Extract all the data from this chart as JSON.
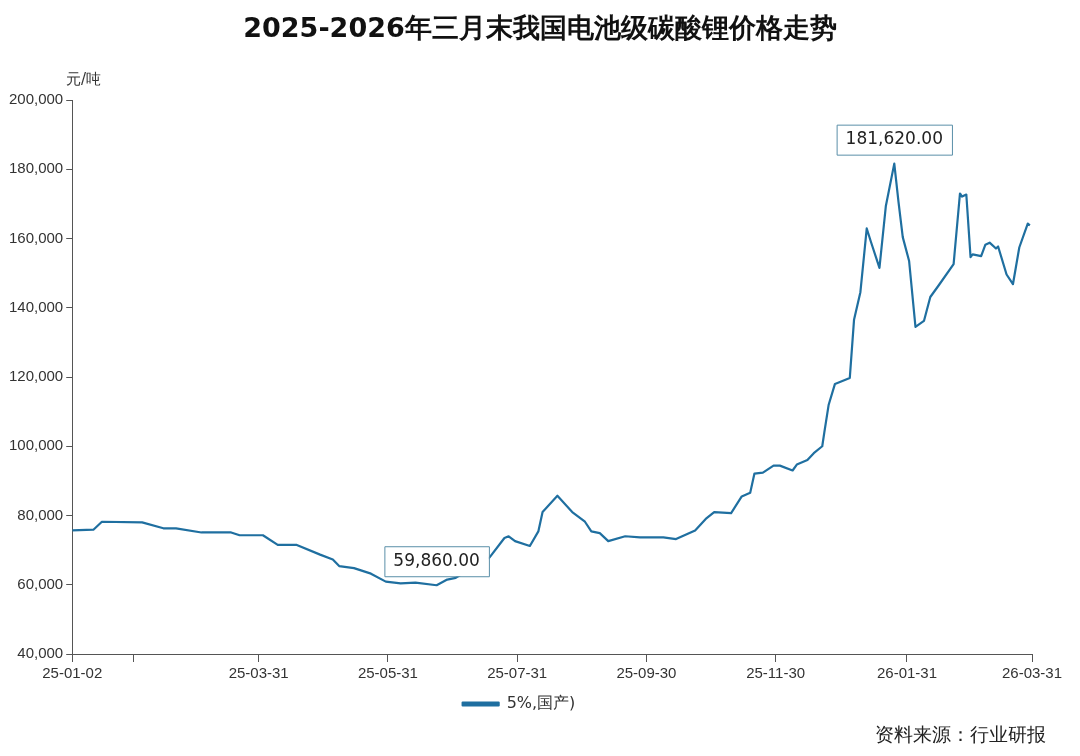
{
  "chart_data": {
    "type": "line",
    "title": "2025-2026年三月末我国电池级碳酸锂价格走势",
    "ylabel": "元/吨",
    "x": [
      "2025-01-02",
      "2025-01-12",
      "2025-01-16",
      "2025-02-04",
      "2025-02-14",
      "2025-02-20",
      "2025-03-04",
      "2025-03-18",
      "2025-03-22",
      "2025-04-02",
      "2025-04-09",
      "2025-04-18",
      "2025-04-29",
      "2025-05-05",
      "2025-05-08",
      "2025-05-15",
      "2025-05-23",
      "2025-05-30",
      "2025-06-06",
      "2025-06-13",
      "2025-06-23",
      "2025-06-28",
      "2025-07-02",
      "2025-07-18",
      "2025-07-25",
      "2025-07-27",
      "2025-07-30",
      "2025-08-06",
      "2025-08-10",
      "2025-08-12",
      "2025-08-19",
      "2025-08-26",
      "2025-09-01",
      "2025-09-04",
      "2025-09-08",
      "2025-09-12",
      "2025-09-20",
      "2025-09-27",
      "2025-10-08",
      "2025-10-14",
      "2025-10-23",
      "2025-10-28",
      "2025-11-01",
      "2025-11-09",
      "2025-11-14",
      "2025-11-18",
      "2025-11-20",
      "2025-11-24",
      "2025-11-29",
      "2025-12-02",
      "2025-12-08",
      "2025-12-10",
      "2025-12-15",
      "2025-12-18",
      "2025-12-22",
      "2025-12-23",
      "2025-12-25",
      "2025-12-28",
      "2026-01-04",
      "2026-01-06",
      "2026-01-09",
      "2026-01-12",
      "2026-01-14",
      "2026-01-18",
      "2026-01-21",
      "2026-01-25",
      "2026-01-27",
      "2026-01-29",
      "2026-02-01",
      "2026-02-04",
      "2026-02-08",
      "2026-02-11",
      "2026-02-15",
      "2026-02-22",
      "2026-02-25",
      "2026-02-26",
      "2026-02-28",
      "2026-03-02",
      "2026-03-03",
      "2026-03-07",
      "2026-03-09",
      "2026-03-11",
      "2026-03-14",
      "2026-03-15",
      "2026-03-19",
      "2026-03-22",
      "2026-03-25",
      "2026-03-29",
      "2026-03-30"
    ],
    "series": [
      {
        "name": "5%,国产)",
        "color": "#1f6fa0",
        "values": [
          75700,
          75900,
          78200,
          78000,
          76300,
          76300,
          75100,
          75100,
          74300,
          74300,
          71500,
          71500,
          68700,
          67300,
          65400,
          64800,
          63200,
          60900,
          60400,
          60600,
          59860,
          61500,
          62000,
          67900,
          73500,
          74000,
          72600,
          71200,
          75400,
          81000,
          85700,
          81000,
          78200,
          75400,
          74900,
          72600,
          74000,
          73700,
          73700,
          73200,
          75700,
          79000,
          81000,
          80700,
          85500,
          86600,
          92100,
          92400,
          94400,
          94400,
          93000,
          94700,
          96000,
          98000,
          100000,
          104100,
          111900,
          118000,
          119700,
          136500,
          144500,
          162900,
          159000,
          151500,
          169300,
          181620,
          170500,
          160400,
          153500,
          134500,
          136200,
          143100,
          146500,
          152600,
          173000,
          172100,
          172700,
          154600,
          155400,
          154900,
          158200,
          158800,
          157100,
          157700,
          149600,
          146800,
          157400,
          164300,
          163800
        ]
      }
    ],
    "xlim": [
      "2025-01-02",
      "2026-03-31"
    ],
    "xticks": [
      {
        "value": "2025-01-02",
        "label": "25-01-02"
      },
      {
        "value": "2025-01-31",
        "label": null
      },
      {
        "value": "2025-03-31",
        "label": "25-03-31"
      },
      {
        "value": "2025-05-31",
        "label": "25-05-31"
      },
      {
        "value": "2025-07-31",
        "label": "25-07-31"
      },
      {
        "value": "2025-09-30",
        "label": "25-09-30"
      },
      {
        "value": "2025-11-30",
        "label": "25-11-30"
      },
      {
        "value": "2026-01-31",
        "label": "26-01-31"
      },
      {
        "value": "2026-03-31",
        "label": "26-03-31"
      }
    ],
    "ylim": [
      40000,
      200000
    ],
    "yticks": [
      {
        "value": 40000,
        "label": "40,000"
      },
      {
        "value": 60000,
        "label": "60,000"
      },
      {
        "value": 80000,
        "label": "80,000"
      },
      {
        "value": 100000,
        "label": "100,000"
      },
      {
        "value": 120000,
        "label": "120,000"
      },
      {
        "value": 140000,
        "label": "140,000"
      },
      {
        "value": 160000,
        "label": "160,000"
      },
      {
        "value": 180000,
        "label": "180,000"
      },
      {
        "value": 200000,
        "label": "200,000"
      }
    ],
    "annotations": [
      {
        "text": "59,860.00",
        "x": "2025-06-23",
        "y": 59860
      },
      {
        "text": "181,620.00",
        "x": "2026-01-25",
        "y": 181620
      },
      "资料来源：行业研报"
    ],
    "legend": "bottom",
    "marker": "none",
    "line_style": "solid"
  }
}
